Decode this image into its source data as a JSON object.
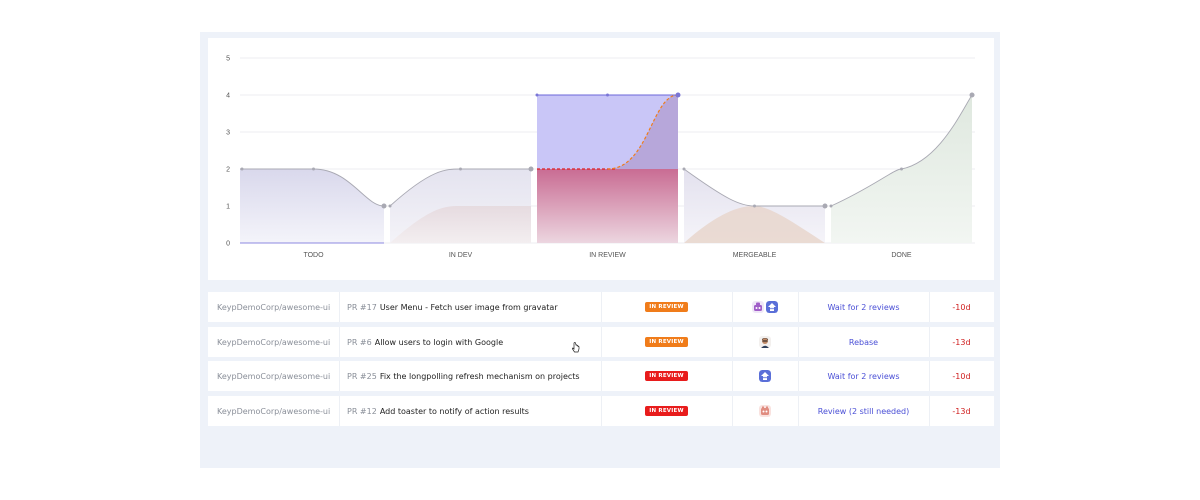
{
  "chart_data": {
    "type": "area",
    "categories": [
      "TODO",
      "IN DEV",
      "IN REVIEW",
      "MERGEABLE",
      "DONE"
    ],
    "y_ticks": [
      "0",
      "1",
      "2",
      "3",
      "4",
      "5"
    ],
    "ylim": [
      0,
      5
    ],
    "grid": true,
    "series": [
      {
        "values": [
          2,
          2,
          4,
          1,
          4
        ]
      },
      {
        "values": [
          0,
          1,
          2,
          1,
          2
        ]
      }
    ],
    "colors": {
      "todo": "#d9d8ec",
      "in_dev": "#e6dbe0",
      "in_review_top": "#c9c6f7",
      "in_review_bottom": "#c96c93",
      "mergeable": "#e3e1ee",
      "done": "#dfe8df"
    }
  },
  "rows": [
    {
      "repo": "KeypDemoCorp/awesome-ui",
      "pr": "PR #17",
      "title": "User Menu - Fetch user image from gravatar",
      "status": "IN REVIEW",
      "status_color": "#f07c1a",
      "avatars": [
        "robot-avatar-purple",
        "robot-avatar-blue"
      ],
      "action": "Wait for 2 reviews",
      "age": "-10d"
    },
    {
      "repo": "KeypDemoCorp/awesome-ui",
      "pr": "PR #6",
      "title": "Allow users to login with Google",
      "status": "IN REVIEW",
      "status_color": "#f07c1a",
      "avatars": [
        "person-avatar"
      ],
      "action": "Rebase",
      "age": "-13d"
    },
    {
      "repo": "KeypDemoCorp/awesome-ui",
      "pr": "PR #25",
      "title": "Fix the longpolling refresh mechanism on projects",
      "status": "IN REVIEW",
      "status_color": "#e81c1c",
      "avatars": [
        "robot-avatar-blue"
      ],
      "action": "Wait for 2 reviews",
      "age": "-10d"
    },
    {
      "repo": "KeypDemoCorp/awesome-ui",
      "pr": "PR #12",
      "title": "Add toaster to notify of action results",
      "status": "IN REVIEW",
      "status_color": "#e81c1c",
      "avatars": [
        "robot-avatar-pink"
      ],
      "action": "Review (2 still needed)",
      "age": "-13d"
    }
  ]
}
